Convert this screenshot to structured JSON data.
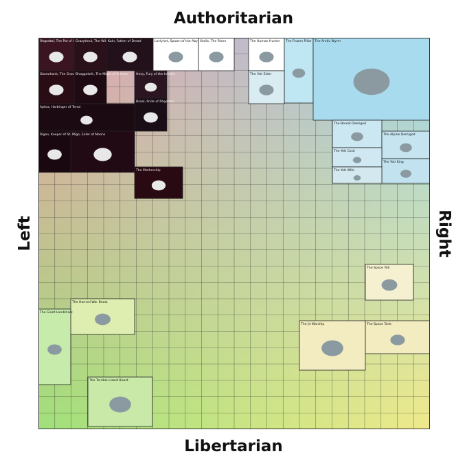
{
  "axes": {
    "top": "Authoritarian",
    "bottom": "Libertarian",
    "left": "Left",
    "right": "Right"
  },
  "chart_data": {
    "type": "heatmap",
    "xlabel_left": "Left",
    "xlabel_right": "Right",
    "ylabel_top": "Authoritarian",
    "ylabel_bottom": "Libertarian",
    "grid": true,
    "quadrant_colors": {
      "auth_left": "#e8a0a8",
      "auth_right": "#9fd3ea",
      "lib_left": "#9fe07a",
      "lib_right": "#efe98a"
    },
    "featured_entries": [
      "Rhgodtol, The Pot of Hell",
      "Grazythrul, The Will of the Cosmos",
      "Kuln, Father of Dread",
      "Lovlyhet, Spawn of the Abyss",
      "Xedia, The Risen",
      "The Human Hunter",
      "The Frozen Pillar",
      "The Arctic Wyrm",
      "Ooznahonk, The Grasp of the Deep",
      "Bhaggeloth, The Might of Echoes",
      "Hexy, Fury of the Infinite",
      "Bzaal, Pride of Rhgodtol",
      "The Yeti Elder",
      "Aphra, Harbinger of Terror",
      "The Boreal Demigod",
      "Rigan, Keeper of Stars",
      "Migo, Eater of Moons",
      "The Alpine Demigod",
      "The Yeti Cock",
      "The Yeti King",
      "The Mothership",
      "The Yeti Wife",
      "The Space Yeti",
      "The Horned War Beast",
      "The Giant Landshark",
      "The Jit Warship",
      "The Space Tank",
      "The Terrible Lizard Beast"
    ]
  }
}
